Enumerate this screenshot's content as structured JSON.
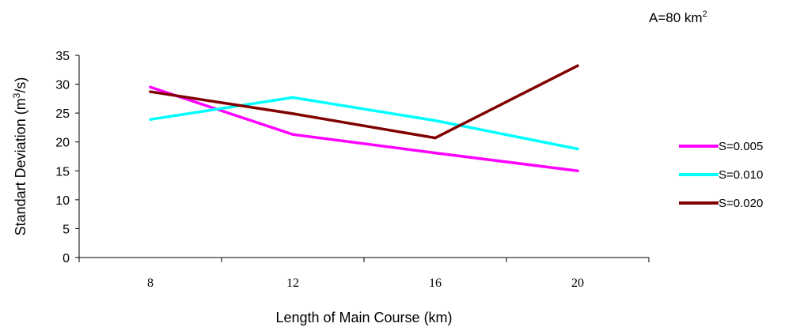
{
  "chart_data": {
    "type": "line",
    "title": "",
    "annotation": {
      "text": "A=80 km",
      "sup": "2"
    },
    "xlabel": "Length of Main Course  (km)",
    "ylabel": {
      "pre": "Standart Deviation (m",
      "sup": "3",
      "post": "/s)"
    },
    "categories": [
      "8",
      "12",
      "16",
      "20"
    ],
    "ylim": [
      0,
      35
    ],
    "yticks": [
      0,
      5,
      10,
      15,
      20,
      25,
      30,
      35
    ],
    "grid": false,
    "legend_position": "right",
    "series": [
      {
        "name": "S=0.005",
        "color": "#ff00ff",
        "values": [
          29.5,
          21.3,
          18.1,
          15.0
        ]
      },
      {
        "name": "S=0.010",
        "color": "#00ffff",
        "values": [
          23.9,
          27.7,
          23.7,
          18.8
        ]
      },
      {
        "name": "S=0.020",
        "color": "#800000",
        "values": [
          28.7,
          24.9,
          20.7,
          33.2
        ]
      }
    ]
  }
}
